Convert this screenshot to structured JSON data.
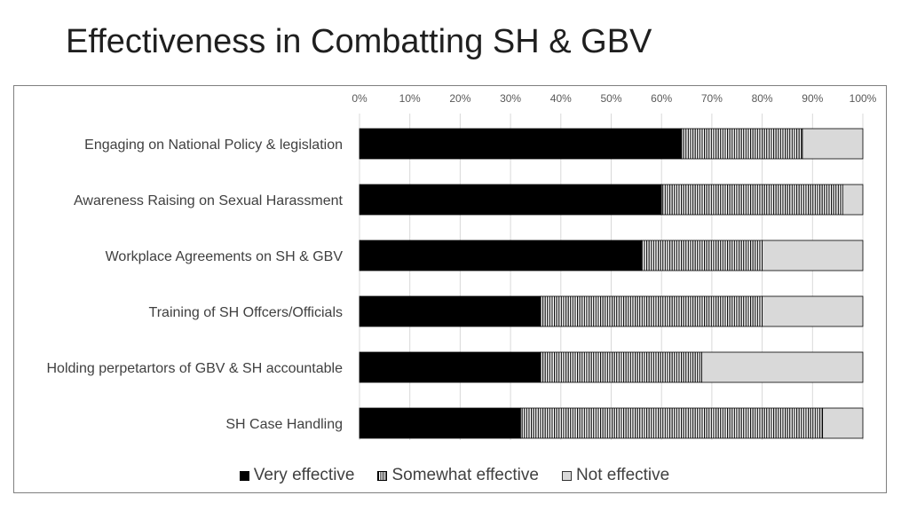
{
  "title": "Effectiveness in Combatting SH & GBV",
  "chart_data": {
    "type": "bar",
    "orientation": "horizontal",
    "stacked": "percent",
    "categories": [
      "Engaging on National Policy & legislation",
      "Awareness Raising on Sexual Harassment",
      "Workplace Agreements on SH & GBV",
      "Training of SH Offcers/Officials",
      "Holding perpetartors of GBV & SH accountable",
      "SH Case Handling"
    ],
    "series": [
      {
        "name": "Very effective",
        "values": [
          64,
          60,
          56,
          36,
          36,
          32
        ],
        "color": "#000000",
        "pattern": "solid"
      },
      {
        "name": "Somewhat effective",
        "values": [
          24,
          36,
          24,
          44,
          32,
          60
        ],
        "color": "#000000",
        "pattern": "vertical-stripes"
      },
      {
        "name": "Not effective",
        "values": [
          12,
          4,
          20,
          20,
          32,
          8
        ],
        "color": "#d9d9d9",
        "pattern": "solid"
      }
    ],
    "xlim": [
      0,
      100
    ],
    "xticks": [
      "0%",
      "10%",
      "20%",
      "30%",
      "40%",
      "50%",
      "60%",
      "70%",
      "80%",
      "90%",
      "100%"
    ],
    "x_axis_position": "top",
    "grid": true,
    "legend_position": "bottom"
  }
}
